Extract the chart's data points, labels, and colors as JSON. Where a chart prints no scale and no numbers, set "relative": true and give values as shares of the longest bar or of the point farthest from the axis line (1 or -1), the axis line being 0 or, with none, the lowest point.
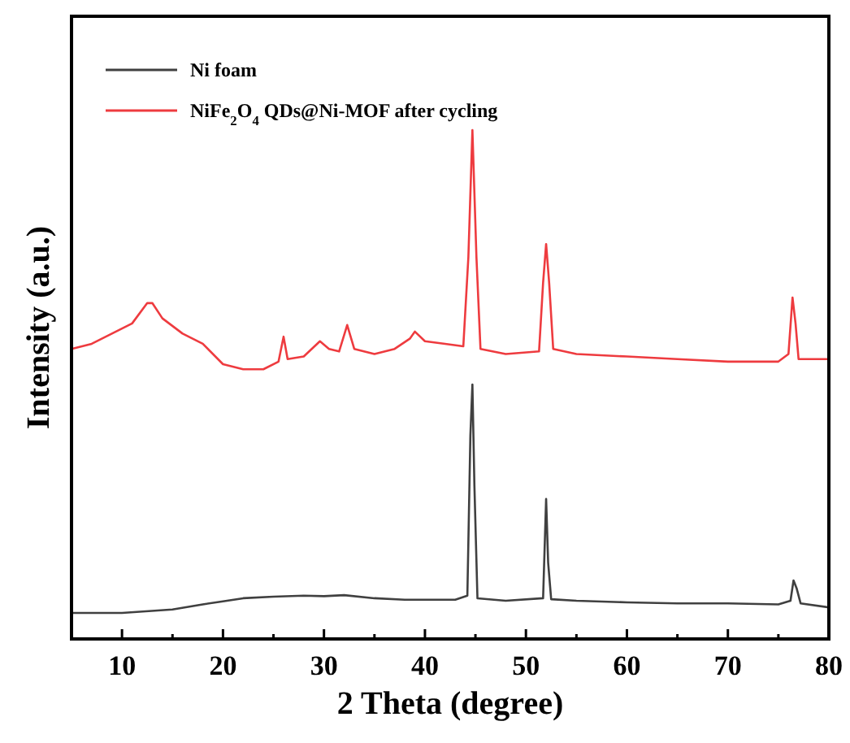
{
  "chart_data": {
    "type": "line",
    "relative": true,
    "xlabel": "2 Theta (degree)",
    "ylabel": "Intensity (a.u.)",
    "xlim": [
      5,
      80
    ],
    "xticks": [
      10,
      {
        "value": 15,
        "label": null
      },
      20,
      {
        "value": 25,
        "label": null
      },
      30,
      {
        "value": 35,
        "label": null
      },
      40,
      {
        "value": 45,
        "label": null
      },
      50,
      {
        "value": 55,
        "label": null
      },
      60,
      {
        "value": 65,
        "label": null
      },
      70,
      {
        "value": 75,
        "label": null
      },
      80
    ],
    "legend": "top left",
    "marker": "none",
    "line_style": "solid",
    "grid": false,
    "series": [
      {
        "name": "Ni foam",
        "color": "#404040",
        "x": [
          5,
          10,
          15,
          18,
          20,
          22,
          25,
          28,
          30,
          32,
          35,
          38,
          40,
          43,
          44.2,
          44.5,
          44.7,
          44.9,
          45.2,
          48,
          51.7,
          52,
          52.2,
          52.5,
          55,
          60,
          65,
          70,
          75,
          76.2,
          76.5,
          76.8,
          77.2,
          80
        ],
        "values": [
          0.051,
          0.051,
          0.058,
          0.068,
          0.074,
          0.08,
          0.083,
          0.085,
          0.084,
          0.086,
          0.08,
          0.077,
          0.077,
          0.077,
          0.085,
          0.4,
          0.5,
          0.3,
          0.08,
          0.075,
          0.08,
          0.275,
          0.15,
          0.078,
          0.075,
          0.072,
          0.07,
          0.07,
          0.068,
          0.075,
          0.115,
          0.1,
          0.07,
          0.062
        ]
      },
      {
        "name": "NiFe$_{2}$O$_{4}$ QDs@Ni-MOF after cycling",
        "color": "#ee3b3f",
        "x": [
          5,
          7,
          9,
          11,
          12.5,
          13,
          14,
          16,
          18,
          20,
          22,
          24,
          25.5,
          26,
          26.4,
          28,
          29.6,
          30.5,
          31.5,
          32.3,
          33,
          35,
          37,
          38.5,
          39,
          40,
          42,
          43.8,
          44.3,
          44.7,
          45.1,
          45.5,
          48,
          51.3,
          51.7,
          52,
          52.3,
          52.7,
          55,
          60,
          65,
          70,
          75,
          76,
          76.4,
          76.7,
          77,
          80
        ],
        "values": [
          0.57,
          0.58,
          0.6,
          0.62,
          0.66,
          0.66,
          0.63,
          0.6,
          0.58,
          0.54,
          0.53,
          0.53,
          0.545,
          0.594,
          0.55,
          0.555,
          0.585,
          0.57,
          0.565,
          0.617,
          0.57,
          0.56,
          0.57,
          0.59,
          0.604,
          0.585,
          0.58,
          0.575,
          0.75,
          1,
          0.75,
          0.57,
          0.56,
          0.565,
          0.7,
          0.776,
          0.7,
          0.57,
          0.56,
          0.555,
          0.55,
          0.545,
          0.545,
          0.56,
          0.671,
          0.62,
          0.55,
          0.55
        ]
      }
    ]
  }
}
